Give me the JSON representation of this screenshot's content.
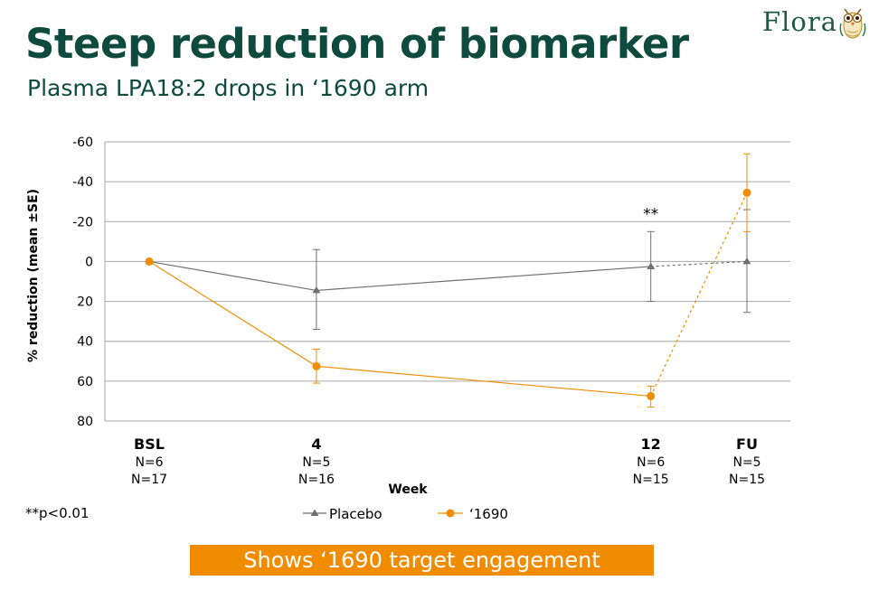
{
  "slide": {
    "title": "Steep reduction of biomarker",
    "subtitle": "Plasma LPA18:2 drops in ‘1690 arm",
    "footnote": "**p<0.01",
    "banner": "Shows ‘1690 target engagement",
    "logo_text": "Flora"
  },
  "colors": {
    "title": "#0e4a3e",
    "placebo": "#707070",
    "drug": "#ef8c00",
    "banner": "#f18c00",
    "grid": "#a6a6a6"
  },
  "chart_data": {
    "type": "line",
    "title": "",
    "xlabel": "Week",
    "ylabel": "% reduction (mean ±SE)",
    "y_inverted": true,
    "ylim": [
      -60,
      80
    ],
    "yticks": [
      -60,
      -40,
      -20,
      0,
      20,
      40,
      60,
      80
    ],
    "yticklabels": [
      "-60",
      "-40",
      "-20",
      "0",
      "20",
      "40",
      "60",
      "80"
    ],
    "timepoints": [
      {
        "label": "BSL",
        "n_placebo": "N=6",
        "n_drug": "N=17",
        "week": 0
      },
      {
        "label": "4",
        "n_placebo": "N=5",
        "n_drug": "N=16",
        "week": 4
      },
      {
        "label": "12",
        "n_placebo": "N=6",
        "n_drug": "N=15",
        "week": 12
      },
      {
        "label": "FU",
        "n_placebo": "N=5",
        "n_drug": "N=15",
        "week": 14.3
      }
    ],
    "series": [
      {
        "name": "Placebo",
        "marker": "triangle",
        "values": [
          0,
          14.5,
          2.5,
          0
        ],
        "err_low": [
          0,
          34,
          20,
          25.5
        ],
        "err_high": [
          0,
          -6,
          -15,
          -26
        ],
        "dashed_last_segment": true
      },
      {
        "name": "‘1690",
        "marker": "circle",
        "values": [
          0,
          52.5,
          67.5,
          -34.5
        ],
        "err_low": [
          0,
          61,
          73,
          -15
        ],
        "err_high": [
          0,
          44,
          62.5,
          -54
        ],
        "dashed_last_segment": true
      }
    ],
    "annotations": [
      {
        "text": "**",
        "timepoint": 2,
        "value": -24
      }
    ],
    "legend": [
      "Placebo",
      "‘1690"
    ],
    "legend_position": "bottom"
  }
}
